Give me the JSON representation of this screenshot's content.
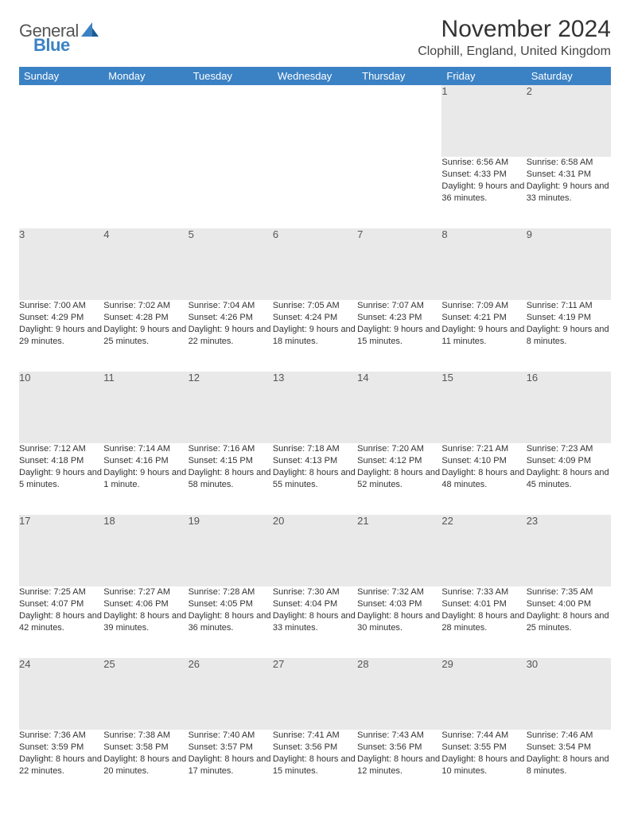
{
  "logo": {
    "text_gray": "General",
    "text_blue": "Blue"
  },
  "title": "November 2024",
  "location": "Clophill, England, United Kingdom",
  "colors": {
    "header_bg": "#3b82c4",
    "header_text": "#ffffff",
    "daynum_bg": "#e9e9e9",
    "daynum_text": "#555555",
    "cell_text": "#333333",
    "row_divider": "#3b82c4",
    "page_bg": "#ffffff"
  },
  "fonts": {
    "title_size_pt": 22,
    "location_size_pt": 12,
    "header_size_pt": 10,
    "daynum_size_pt": 10,
    "body_size_pt": 8
  },
  "day_headers": [
    "Sunday",
    "Monday",
    "Tuesday",
    "Wednesday",
    "Thursday",
    "Friday",
    "Saturday"
  ],
  "weeks": [
    [
      null,
      null,
      null,
      null,
      null,
      {
        "num": "1",
        "sunrise": "Sunrise: 6:56 AM",
        "sunset": "Sunset: 4:33 PM",
        "daylight": "Daylight: 9 hours and 36 minutes."
      },
      {
        "num": "2",
        "sunrise": "Sunrise: 6:58 AM",
        "sunset": "Sunset: 4:31 PM",
        "daylight": "Daylight: 9 hours and 33 minutes."
      }
    ],
    [
      {
        "num": "3",
        "sunrise": "Sunrise: 7:00 AM",
        "sunset": "Sunset: 4:29 PM",
        "daylight": "Daylight: 9 hours and 29 minutes."
      },
      {
        "num": "4",
        "sunrise": "Sunrise: 7:02 AM",
        "sunset": "Sunset: 4:28 PM",
        "daylight": "Daylight: 9 hours and 25 minutes."
      },
      {
        "num": "5",
        "sunrise": "Sunrise: 7:04 AM",
        "sunset": "Sunset: 4:26 PM",
        "daylight": "Daylight: 9 hours and 22 minutes."
      },
      {
        "num": "6",
        "sunrise": "Sunrise: 7:05 AM",
        "sunset": "Sunset: 4:24 PM",
        "daylight": "Daylight: 9 hours and 18 minutes."
      },
      {
        "num": "7",
        "sunrise": "Sunrise: 7:07 AM",
        "sunset": "Sunset: 4:23 PM",
        "daylight": "Daylight: 9 hours and 15 minutes."
      },
      {
        "num": "8",
        "sunrise": "Sunrise: 7:09 AM",
        "sunset": "Sunset: 4:21 PM",
        "daylight": "Daylight: 9 hours and 11 minutes."
      },
      {
        "num": "9",
        "sunrise": "Sunrise: 7:11 AM",
        "sunset": "Sunset: 4:19 PM",
        "daylight": "Daylight: 9 hours and 8 minutes."
      }
    ],
    [
      {
        "num": "10",
        "sunrise": "Sunrise: 7:12 AM",
        "sunset": "Sunset: 4:18 PM",
        "daylight": "Daylight: 9 hours and 5 minutes."
      },
      {
        "num": "11",
        "sunrise": "Sunrise: 7:14 AM",
        "sunset": "Sunset: 4:16 PM",
        "daylight": "Daylight: 9 hours and 1 minute."
      },
      {
        "num": "12",
        "sunrise": "Sunrise: 7:16 AM",
        "sunset": "Sunset: 4:15 PM",
        "daylight": "Daylight: 8 hours and 58 minutes."
      },
      {
        "num": "13",
        "sunrise": "Sunrise: 7:18 AM",
        "sunset": "Sunset: 4:13 PM",
        "daylight": "Daylight: 8 hours and 55 minutes."
      },
      {
        "num": "14",
        "sunrise": "Sunrise: 7:20 AM",
        "sunset": "Sunset: 4:12 PM",
        "daylight": "Daylight: 8 hours and 52 minutes."
      },
      {
        "num": "15",
        "sunrise": "Sunrise: 7:21 AM",
        "sunset": "Sunset: 4:10 PM",
        "daylight": "Daylight: 8 hours and 48 minutes."
      },
      {
        "num": "16",
        "sunrise": "Sunrise: 7:23 AM",
        "sunset": "Sunset: 4:09 PM",
        "daylight": "Daylight: 8 hours and 45 minutes."
      }
    ],
    [
      {
        "num": "17",
        "sunrise": "Sunrise: 7:25 AM",
        "sunset": "Sunset: 4:07 PM",
        "daylight": "Daylight: 8 hours and 42 minutes."
      },
      {
        "num": "18",
        "sunrise": "Sunrise: 7:27 AM",
        "sunset": "Sunset: 4:06 PM",
        "daylight": "Daylight: 8 hours and 39 minutes."
      },
      {
        "num": "19",
        "sunrise": "Sunrise: 7:28 AM",
        "sunset": "Sunset: 4:05 PM",
        "daylight": "Daylight: 8 hours and 36 minutes."
      },
      {
        "num": "20",
        "sunrise": "Sunrise: 7:30 AM",
        "sunset": "Sunset: 4:04 PM",
        "daylight": "Daylight: 8 hours and 33 minutes."
      },
      {
        "num": "21",
        "sunrise": "Sunrise: 7:32 AM",
        "sunset": "Sunset: 4:03 PM",
        "daylight": "Daylight: 8 hours and 30 minutes."
      },
      {
        "num": "22",
        "sunrise": "Sunrise: 7:33 AM",
        "sunset": "Sunset: 4:01 PM",
        "daylight": "Daylight: 8 hours and 28 minutes."
      },
      {
        "num": "23",
        "sunrise": "Sunrise: 7:35 AM",
        "sunset": "Sunset: 4:00 PM",
        "daylight": "Daylight: 8 hours and 25 minutes."
      }
    ],
    [
      {
        "num": "24",
        "sunrise": "Sunrise: 7:36 AM",
        "sunset": "Sunset: 3:59 PM",
        "daylight": "Daylight: 8 hours and 22 minutes."
      },
      {
        "num": "25",
        "sunrise": "Sunrise: 7:38 AM",
        "sunset": "Sunset: 3:58 PM",
        "daylight": "Daylight: 8 hours and 20 minutes."
      },
      {
        "num": "26",
        "sunrise": "Sunrise: 7:40 AM",
        "sunset": "Sunset: 3:57 PM",
        "daylight": "Daylight: 8 hours and 17 minutes."
      },
      {
        "num": "27",
        "sunrise": "Sunrise: 7:41 AM",
        "sunset": "Sunset: 3:56 PM",
        "daylight": "Daylight: 8 hours and 15 minutes."
      },
      {
        "num": "28",
        "sunrise": "Sunrise: 7:43 AM",
        "sunset": "Sunset: 3:56 PM",
        "daylight": "Daylight: 8 hours and 12 minutes."
      },
      {
        "num": "29",
        "sunrise": "Sunrise: 7:44 AM",
        "sunset": "Sunset: 3:55 PM",
        "daylight": "Daylight: 8 hours and 10 minutes."
      },
      {
        "num": "30",
        "sunrise": "Sunrise: 7:46 AM",
        "sunset": "Sunset: 3:54 PM",
        "daylight": "Daylight: 8 hours and 8 minutes."
      }
    ]
  ]
}
